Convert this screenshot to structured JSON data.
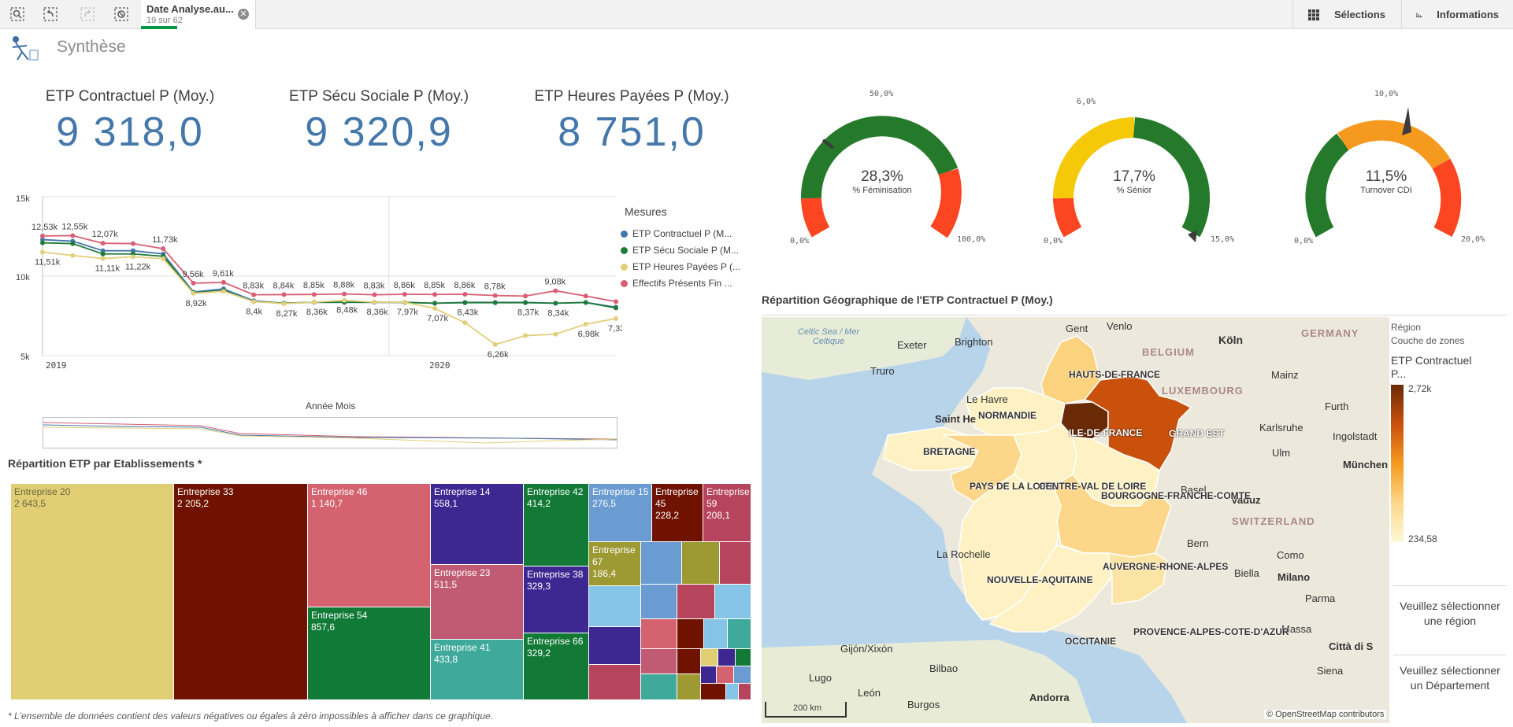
{
  "toolbar": {
    "selection_tab": {
      "title": "Date Analyse.au...",
      "subtitle": "19 sur 62"
    },
    "selections_label": "Sélections",
    "info_label": "Informations"
  },
  "sheet": {
    "title": "Synthèse"
  },
  "kpis": [
    {
      "label": "ETP Contractuel P (Moy.)",
      "value": "9 318,0"
    },
    {
      "label": "ETP Sécu Sociale P (Moy.)",
      "value": "9 320,9"
    },
    {
      "label": "ETP Heures Payées P (Moy.)",
      "value": "8 751,0"
    }
  ],
  "gauges": [
    {
      "value": "28,3%",
      "label": "% Féminisation",
      "min": "0,0%",
      "max": "100,0%",
      "mark": "50,0%",
      "colors": [
        "#fc4521",
        "#247a2a"
      ]
    },
    {
      "value": "17,7%",
      "label": "% Sénior",
      "min": "0,0%",
      "max": "15,0%",
      "mark": "6,0%",
      "colors": [
        "#fc4521",
        "#f5c907",
        "#247a2a"
      ]
    },
    {
      "value": "11,5%",
      "label": "Turnover CDI",
      "min": "0,0%",
      "max": "20,0%",
      "mark": "10,0%",
      "colors": [
        "#247a2a",
        "#f59a1e",
        "#fc4521"
      ]
    }
  ],
  "line_chart": {
    "legend_title": "Mesures",
    "x_axis_title": "Année Mois",
    "year_labels": [
      "2019",
      "2020"
    ],
    "y_ticks": [
      "15k",
      "10k",
      "5k"
    ],
    "legend": [
      {
        "name": "ETP Contractuel P (M...",
        "color": "#4477aa"
      },
      {
        "name": "ETP Sécu Sociale P (M...",
        "color": "#1e7b39"
      },
      {
        "name": "ETP Heures Payées P (...",
        "color": "#e2cf7a"
      },
      {
        "name": "Effectifs Présents Fin ...",
        "color": "#d95e74"
      }
    ]
  },
  "chart_data": {
    "type": "line",
    "ylim": [
      5000,
      15000
    ],
    "x": [
      "2019-01",
      "2019-02",
      "2019-03",
      "2019-04",
      "2019-05",
      "2019-06",
      "2019-07",
      "2019-08",
      "2019-09",
      "2019-10",
      "2019-11",
      "2019-12",
      "2020-01",
      "2020-02",
      "2020-03",
      "2020-04",
      "2020-05",
      "2020-06",
      "2020-07",
      "2020-08"
    ],
    "series": [
      {
        "name": "ETP Contractuel P (M...",
        "values": [
          12300,
          12200,
          11600,
          11600,
          11400,
          9000,
          9200,
          8450,
          8300,
          8350,
          8350,
          8350,
          8350,
          8300,
          8350,
          8350,
          8350,
          8300,
          8350,
          8050
        ]
      },
      {
        "name": "ETP Sécu Sociale P (M...",
        "values": [
          12100,
          12050,
          11400,
          11400,
          11250,
          8950,
          9100,
          8400,
          8300,
          8360,
          8360,
          8360,
          8350,
          8300,
          8330,
          8330,
          8330,
          8300,
          8340,
          8000
        ]
      },
      {
        "name": "ETP Heures Payées P (...",
        "values": [
          11510,
          11300,
          11110,
          11220,
          11100,
          8920,
          9050,
          8400,
          8270,
          8360,
          8480,
          8360,
          8360,
          7970,
          7070,
          5700,
          6260,
          6350,
          6980,
          7330
        ]
      },
      {
        "name": "Effectifs Présents Fin ...",
        "values": [
          12530,
          12550,
          12070,
          12050,
          11730,
          9560,
          9610,
          8830,
          8840,
          8850,
          8880,
          8830,
          8860,
          8850,
          8860,
          8780,
          8750,
          9080,
          8750,
          8400
        ]
      }
    ],
    "data_labels": {
      "top": [
        "12,53k",
        "12,55k",
        "12,07k",
        "11,73k",
        "9,56k",
        "9,61k",
        "8,83k",
        "8,84k",
        "8,85k",
        "8,88k",
        "8,83k",
        "8,86k",
        "8,85k",
        "8,86k",
        "8,78k",
        "9,08k"
      ],
      "bottom": [
        "11,51k",
        "11,11k",
        "11,22k",
        "8,92k",
        "8,4k",
        "8,27k",
        "8,36k",
        "8,48k",
        "8,36k",
        "7,97k",
        "7,07k",
        "8,43k",
        "6,26k",
        "8,37k",
        "8,34k",
        "6,98k",
        "7,33k"
      ]
    }
  },
  "treemap": {
    "title": "Répartition ETP par Etablissements *",
    "footnote": "* L'ensemble de données contient des valeurs négatives ou égales à zéro impossibles à afficher dans ce graphique.",
    "cells": [
      {
        "name": "Entreprise 20",
        "value": "2 643,5",
        "color": "#e1cd73"
      },
      {
        "name": "Entreprise 33",
        "value": "2 205,2",
        "color": "#6f1300"
      },
      {
        "name": "Entreprise 46",
        "value": "1 140,7",
        "color": "#d4636f"
      },
      {
        "name": "Entreprise 54",
        "value": "857,6",
        "color": "#117a36"
      },
      {
        "name": "Entreprise 14",
        "value": "558,1",
        "color": "#3d2891"
      },
      {
        "name": "Entreprise 23",
        "value": "511,5",
        "color": "#c05b73"
      },
      {
        "name": "Entreprise 41",
        "value": "433,8",
        "color": "#3fa99c"
      },
      {
        "name": "Entreprise 42",
        "value": "414,2",
        "color": "#127a36"
      },
      {
        "name": "Entreprise 38",
        "value": "329,3",
        "color": "#3d2891"
      },
      {
        "name": "Entreprise 66",
        "value": "329,2",
        "color": "#127a36"
      },
      {
        "name": "Entreprise 15",
        "value": "276,5",
        "color": "#6a9cd2"
      },
      {
        "name": "Entreprise 67",
        "value": "186,4",
        "color": "#9d9a34"
      },
      {
        "name": "Entreprise 45",
        "value": "228,2",
        "color": "#6f1300"
      },
      {
        "name": "Entreprise 59",
        "value": "208,1",
        "color": "#b5445c"
      }
    ]
  },
  "map": {
    "title": "Répartition Géographique de l'ETP Contractuel P (Moy.)",
    "legend": {
      "layer": "Région",
      "sublayer": "Couche de zones",
      "measure": "ETP Contractuel P...",
      "max": "2,72k",
      "min": "234,58"
    },
    "regions": [
      "HAUTS-DE-FRANCE",
      "NORMANDIE",
      "ILE-DE-FRANCE",
      "GRAND EST",
      "BRETAGNE",
      "PAYS DE LA LOIRE",
      "CENTRE-VAL DE LOIRE",
      "BOURGOGNE-FRANCHE-COMTE",
      "NOUVELLE-AQUITAINE",
      "AUVERGNE-RHONE-ALPES",
      "OCCITANIE",
      "PROVENCE-ALPES-COTE-D'AZUR"
    ],
    "cities": [
      "Exeter",
      "Brighton",
      "Gent",
      "Venlo",
      "Köln",
      "Truro",
      "Le Havre",
      "Mainz",
      "Saint He",
      "Karlsruhe",
      "Furth",
      "Ulm",
      "Ingolstadt",
      "München",
      "Vaduz",
      "Bern",
      "Como",
      "Milano",
      "Biella",
      "Parma",
      "La Rochelle",
      "Massa",
      "Città di S",
      "Siena",
      "Gijón/Xixón",
      "Lugo",
      "Bilbao",
      "León",
      "Burgos",
      "Andorra",
      "Basel"
    ],
    "countries": [
      "BELGIUM",
      "GERMANY",
      "LUXEMBOURG",
      "SWITZERLAND"
    ],
    "sea": "Celtic Sea / Mer Celtique",
    "scale": "200 km",
    "attribution": "© OpenStreetMap contributors",
    "side_buttons": [
      "Veuillez sélectionner une région",
      "Veuillez sélectionner un Département"
    ]
  }
}
